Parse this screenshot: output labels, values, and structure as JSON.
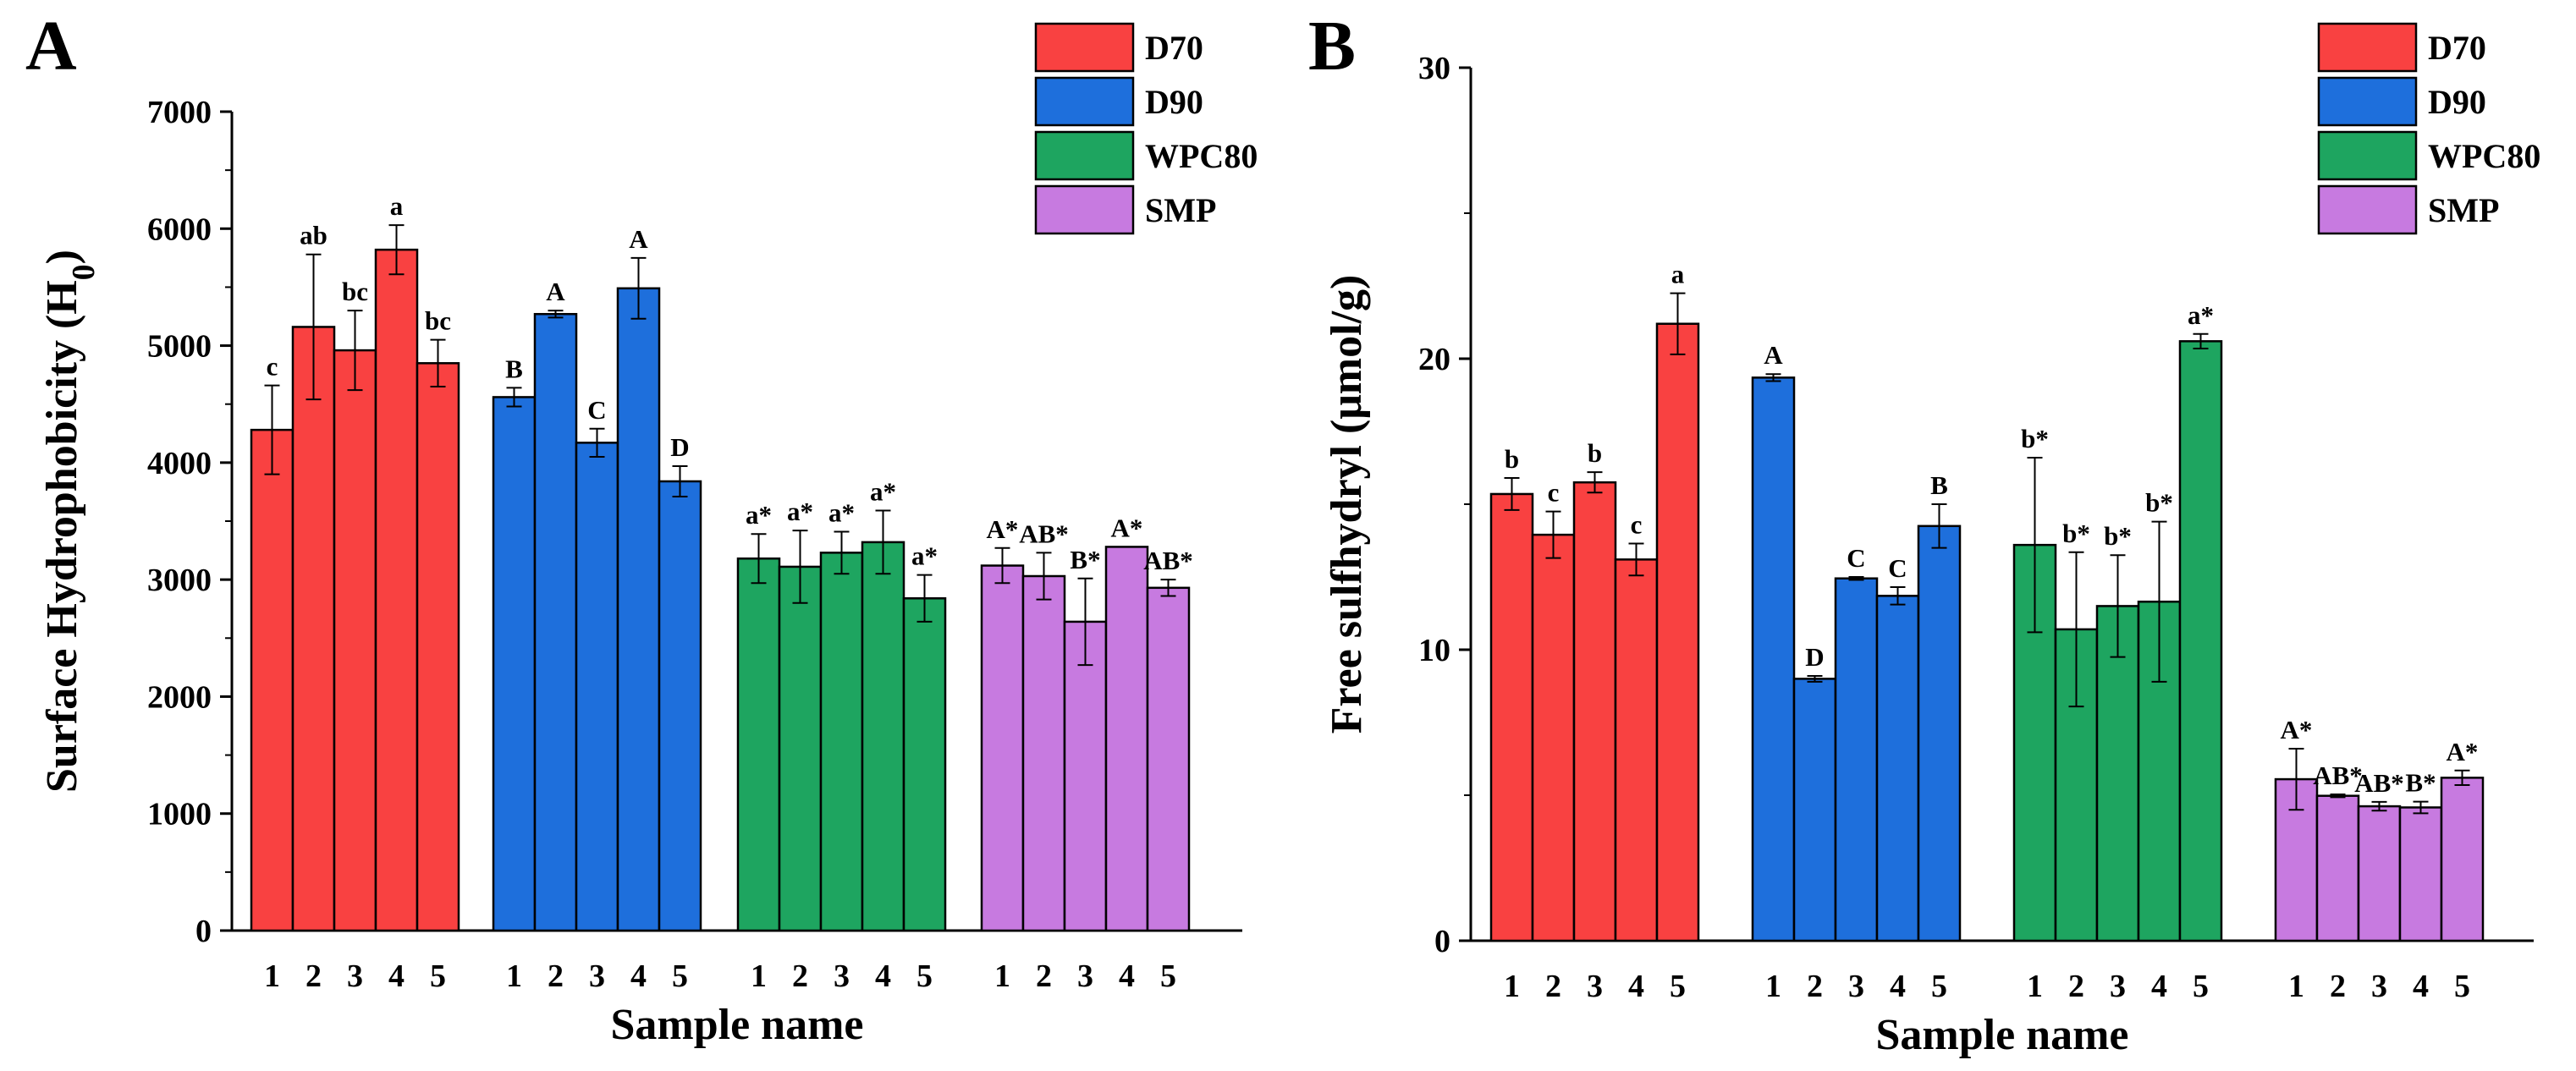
{
  "chart_data": [
    {
      "type": "bar",
      "panel_label": "A",
      "xlabel": "Sample name",
      "ylabel": "Surface Hydrophobicity (H",
      "ylabel_subscript": "0",
      "ylabel_close": ")",
      "ylim": [
        0,
        7000
      ],
      "yticks": [
        0,
        1000,
        2000,
        3000,
        4000,
        5000,
        6000,
        7000
      ],
      "legend_position": "top-right",
      "colors": {
        "D70": "#f94141",
        "D90": "#1e6fdc",
        "WPC80": "#1ea560",
        "SMP": "#c77ae0"
      },
      "groups": [
        {
          "name": "D70",
          "categories": [
            "1",
            "2",
            "3",
            "4",
            "5"
          ],
          "values": [
            4280,
            5160,
            4960,
            5820,
            4850
          ],
          "errors": [
            380,
            620,
            340,
            210,
            200
          ],
          "labels": [
            "c",
            "ab",
            "bc",
            "a",
            "bc"
          ]
        },
        {
          "name": "D90",
          "categories": [
            "1",
            "2",
            "3",
            "4",
            "5"
          ],
          "values": [
            4560,
            5270,
            4170,
            5490,
            3840
          ],
          "errors": [
            80,
            30,
            120,
            260,
            130
          ],
          "labels": [
            "B",
            "A",
            "C",
            "A",
            "D"
          ]
        },
        {
          "name": "WPC80",
          "categories": [
            "1",
            "2",
            "3",
            "4",
            "5"
          ],
          "values": [
            3180,
            3110,
            3230,
            3320,
            2840
          ],
          "errors": [
            210,
            310,
            180,
            270,
            200
          ],
          "labels": [
            "a*",
            "a*",
            "a*",
            "a*",
            "a*"
          ]
        },
        {
          "name": "SMP",
          "categories": [
            "1",
            "2",
            "3",
            "4",
            "5"
          ],
          "values": [
            3120,
            3030,
            2640,
            3280,
            2930
          ],
          "errors": [
            150,
            200,
            370,
            0,
            70
          ],
          "labels": [
            "A*",
            "AB*",
            "B*",
            "A*",
            "AB*"
          ]
        }
      ]
    },
    {
      "type": "bar",
      "panel_label": "B",
      "xlabel": "Sample name",
      "ylabel": "Free sulfhydryl (μmol/g)",
      "ylim": [
        0,
        30
      ],
      "yticks": [
        0,
        10,
        20,
        30
      ],
      "legend_position": "top-right",
      "colors": {
        "D70": "#f94141",
        "D90": "#1e6fdc",
        "WPC80": "#1ea560",
        "SMP": "#c77ae0"
      },
      "groups": [
        {
          "name": "D70",
          "categories": [
            "1",
            "2",
            "3",
            "4",
            "5"
          ],
          "values": [
            15.35,
            13.95,
            15.75,
            13.1,
            21.2
          ],
          "errors": [
            0.55,
            0.8,
            0.35,
            0.55,
            1.05
          ],
          "labels": [
            "b",
            "c",
            "b",
            "c",
            "a"
          ]
        },
        {
          "name": "D90",
          "categories": [
            "1",
            "2",
            "3",
            "4",
            "5"
          ],
          "values": [
            19.35,
            9.0,
            12.45,
            11.85,
            14.25
          ],
          "errors": [
            0.12,
            0.1,
            0.05,
            0.3,
            0.75
          ],
          "labels": [
            "A",
            "D",
            "C",
            "C",
            "B"
          ]
        },
        {
          "name": "WPC80",
          "categories": [
            "1",
            "2",
            "3",
            "4",
            "5"
          ],
          "values": [
            13.6,
            10.7,
            11.5,
            11.65,
            20.6
          ],
          "errors": [
            3.0,
            2.65,
            1.75,
            2.75,
            0.25
          ],
          "labels": [
            "b*",
            "b*",
            "b*",
            "b*",
            "a*"
          ]
        },
        {
          "name": "SMP",
          "categories": [
            "1",
            "2",
            "3",
            "4",
            "5"
          ],
          "values": [
            5.55,
            4.98,
            4.62,
            4.58,
            5.6
          ],
          "errors": [
            1.05,
            0.05,
            0.15,
            0.2,
            0.25
          ],
          "labels": [
            "A*",
            "AB*",
            "AB*",
            "B*",
            "A*"
          ]
        }
      ]
    }
  ]
}
